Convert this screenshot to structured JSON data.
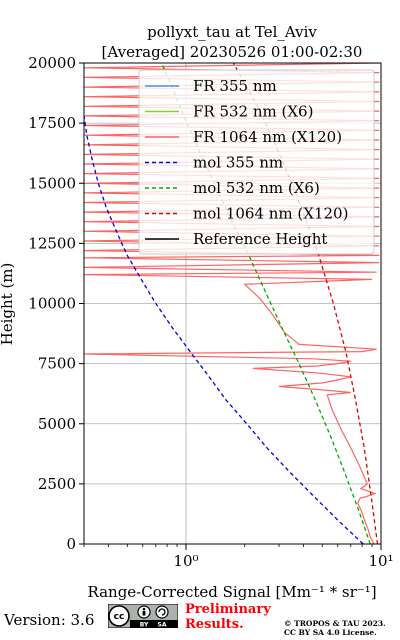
{
  "chart_data": {
    "type": "line",
    "title": "pollyxt_tau at Tel_Aviv",
    "subtitle": "[Averaged] 20230526 01:00-02:30",
    "xlabel": "Range-Corrected Signal [Mm⁻¹ * sr⁻¹]",
    "ylabel": "Height (m)",
    "xscale": "log",
    "xlim": [
      0.3,
      10
    ],
    "ylim": [
      0,
      20000
    ],
    "x_tick_labels": [
      "10⁰",
      "10¹"
    ],
    "y_ticks": [
      0,
      2500,
      5000,
      7500,
      10000,
      12500,
      15000,
      17500,
      20000
    ],
    "grid": true,
    "legend": "top-right",
    "series": [
      {
        "name": "FR 355 nm",
        "color": "#4a90e2",
        "style": "solid",
        "points": []
      },
      {
        "name": "FR 532 nm (X6)",
        "color": "#7ed321",
        "style": "solid",
        "points": []
      },
      {
        "name": "FR 1064 nm (X120)",
        "color": "#ff6464",
        "style": "solid",
        "points": [
          [
            9.2,
            0
          ],
          [
            8.8,
            300
          ],
          [
            8.6,
            600
          ],
          [
            8.3,
            900
          ],
          [
            8.0,
            1300
          ],
          [
            7.6,
            1700
          ],
          [
            7.8,
            1900
          ],
          [
            8.6,
            2000
          ],
          [
            9.3,
            2100
          ],
          [
            8.6,
            2200
          ],
          [
            7.9,
            2300
          ],
          [
            8.5,
            2500
          ],
          [
            8.2,
            2800
          ],
          [
            7.8,
            3200
          ],
          [
            7.3,
            3700
          ],
          [
            6.8,
            4200
          ],
          [
            6.3,
            4700
          ],
          [
            5.9,
            5200
          ],
          [
            5.6,
            5600
          ],
          [
            5.4,
            6000
          ],
          [
            5.3,
            6200
          ],
          [
            7.0,
            6300
          ],
          [
            5.2,
            6400
          ],
          [
            3.0,
            6550
          ],
          [
            5.0,
            6700
          ],
          [
            5.8,
            6800
          ],
          [
            7.0,
            6950
          ],
          [
            4.9,
            7100
          ],
          [
            2.2,
            7300
          ],
          [
            4.7,
            7400
          ],
          [
            6.0,
            7500
          ],
          [
            7.0,
            7600
          ],
          [
            4.5,
            7700
          ],
          [
            0.3,
            7900
          ],
          [
            8.0,
            8000
          ],
          [
            9.5,
            8100
          ],
          [
            3.8,
            8300
          ],
          [
            3.2,
            8800
          ],
          [
            2.8,
            9500
          ],
          [
            2.4,
            10200
          ],
          [
            2.0,
            10800
          ],
          [
            9.0,
            11000
          ],
          [
            0.3,
            11200
          ],
          [
            9.5,
            11300
          ],
          [
            0.3,
            11500
          ],
          [
            9.8,
            11700
          ],
          [
            0.3,
            11900
          ],
          [
            9.8,
            12000
          ],
          [
            0.3,
            12200
          ],
          [
            9.8,
            12400
          ],
          [
            0.3,
            12600
          ],
          [
            9.8,
            12800
          ],
          [
            0.3,
            13000
          ],
          [
            9.8,
            13200
          ],
          [
            0.3,
            13400
          ],
          [
            9.8,
            13600
          ],
          [
            0.3,
            13800
          ],
          [
            9.8,
            14000
          ],
          [
            0.3,
            14200
          ],
          [
            9.8,
            14400
          ],
          [
            0.3,
            14600
          ],
          [
            9.8,
            14800
          ],
          [
            0.3,
            15000
          ],
          [
            9.8,
            15200
          ],
          [
            0.3,
            15400
          ],
          [
            9.8,
            15600
          ],
          [
            0.3,
            15800
          ],
          [
            9.8,
            16000
          ],
          [
            0.3,
            16200
          ],
          [
            9.8,
            16400
          ],
          [
            0.3,
            16600
          ],
          [
            9.8,
            16800
          ],
          [
            0.3,
            17000
          ],
          [
            9.8,
            17200
          ],
          [
            0.3,
            17400
          ],
          [
            9.8,
            17600
          ],
          [
            0.3,
            17800
          ],
          [
            9.8,
            18000
          ],
          [
            0.3,
            18200
          ],
          [
            9.8,
            18400
          ],
          [
            0.3,
            18600
          ],
          [
            9.8,
            18800
          ],
          [
            0.3,
            19000
          ],
          [
            9.8,
            19200
          ],
          [
            0.3,
            19400
          ],
          [
            9.8,
            19600
          ],
          [
            0.3,
            19800
          ],
          [
            9.8,
            20000
          ]
        ]
      },
      {
        "name": "mol 355 nm",
        "color": "#0000dd",
        "style": "dashed",
        "points": [
          [
            8.1,
            0
          ],
          [
            6.0,
            1000
          ],
          [
            4.5,
            2000
          ],
          [
            3.4,
            3000
          ],
          [
            2.6,
            4000
          ],
          [
            2.05,
            5000
          ],
          [
            1.6,
            6000
          ],
          [
            1.3,
            7000
          ],
          [
            1.05,
            8000
          ],
          [
            0.85,
            9000
          ],
          [
            0.7,
            10000
          ],
          [
            0.59,
            11000
          ],
          [
            0.5,
            12000
          ],
          [
            0.44,
            13000
          ],
          [
            0.39,
            14000
          ],
          [
            0.355,
            15000
          ],
          [
            0.33,
            16000
          ],
          [
            0.31,
            17000
          ],
          [
            0.3,
            17800
          ]
        ]
      },
      {
        "name": "mol 532 nm (X6)",
        "color": "#00aa00",
        "style": "dashed",
        "points": [
          [
            8.8,
            0
          ],
          [
            7.6,
            1500
          ],
          [
            6.5,
            3000
          ],
          [
            5.5,
            4500
          ],
          [
            4.6,
            6000
          ],
          [
            3.8,
            7500
          ],
          [
            3.1,
            9000
          ],
          [
            2.55,
            10500
          ],
          [
            2.1,
            12000
          ],
          [
            1.7,
            13500
          ],
          [
            1.4,
            15000
          ],
          [
            1.15,
            16500
          ],
          [
            0.95,
            18000
          ],
          [
            0.85,
            19000
          ],
          [
            0.75,
            20000
          ]
        ]
      },
      {
        "name": "mol 1064 nm (X120)",
        "color": "#dd0000",
        "style": "dashed",
        "points": [
          [
            9.6,
            0
          ],
          [
            8.9,
            2000
          ],
          [
            8.2,
            4000
          ],
          [
            7.4,
            6000
          ],
          [
            6.6,
            8000
          ],
          [
            5.7,
            10000
          ],
          [
            4.8,
            12000
          ],
          [
            3.9,
            14000
          ],
          [
            3.1,
            16000
          ],
          [
            2.4,
            18000
          ],
          [
            1.75,
            20000
          ]
        ]
      },
      {
        "name": "Reference Height",
        "color": "#000000",
        "style": "solid",
        "points": []
      }
    ]
  },
  "footer": {
    "version": "Version: 3.6",
    "preliminary": [
      "Preliminary",
      "Results."
    ],
    "copyright": [
      "© TROPOS & TAU 2023.",
      "CC BY SA 4.0 License."
    ],
    "badge": {
      "cc": "cc",
      "by": "BY",
      "sa": "SA"
    }
  }
}
